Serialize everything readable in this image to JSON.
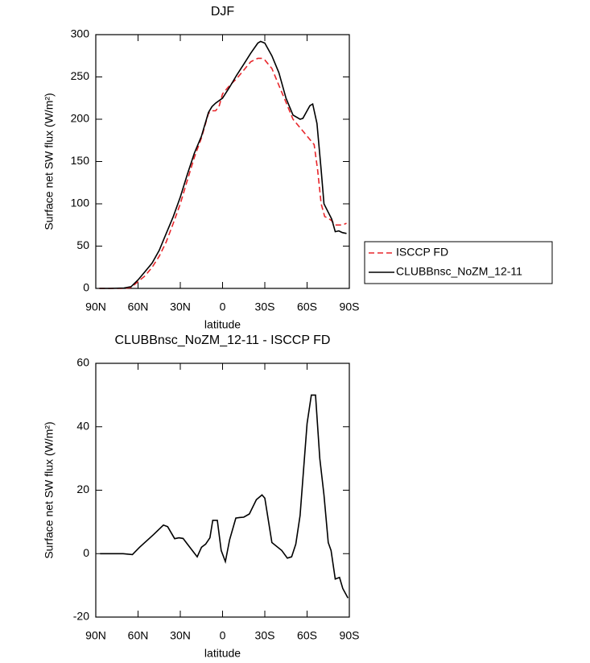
{
  "chart_data": [
    {
      "type": "line",
      "title": "DJF",
      "x_label": "latitude",
      "y_label": "Surface net SW flux (W/m²)",
      "xlim": [
        90,
        -90
      ],
      "xticks": [
        {
          "value": 90,
          "label": "90N"
        },
        {
          "value": 60,
          "label": "60N"
        },
        {
          "value": 30,
          "label": "30N"
        },
        0,
        {
          "value": -30,
          "label": "30S"
        },
        {
          "value": -60,
          "label": "60S"
        },
        {
          "value": -90,
          "label": "90S"
        }
      ],
      "ylim": [
        0,
        300
      ],
      "yticks": [
        0,
        50,
        100,
        150,
        200,
        250,
        300
      ],
      "legend_position": "right",
      "series": [
        {
          "name": "ISCCP FD",
          "color": "#e8262b",
          "linestyle": "dashed",
          "x": [
            87.5,
            80,
            70,
            65,
            60,
            55,
            50,
            45,
            40,
            35,
            30,
            25,
            20,
            15,
            10,
            7.5,
            5,
            2.5,
            0,
            -5,
            -10,
            -15,
            -20,
            -25,
            -28,
            -30,
            -35,
            -40,
            -45,
            -50,
            -55,
            -60,
            -65,
            -67.5,
            -70,
            -72.5,
            -75,
            -77.5,
            -80,
            -85,
            -88
          ],
          "values": [
            0,
            0,
            0,
            1,
            8,
            15,
            25,
            38,
            55,
            77,
            100,
            128,
            155,
            178,
            207,
            210,
            210,
            215,
            230,
            240,
            248,
            258,
            268,
            272,
            272,
            270,
            260,
            240,
            220,
            200,
            190,
            180,
            170,
            140,
            100,
            85,
            83,
            80,
            75,
            75,
            77
          ]
        },
        {
          "name": "CLUBBnsc_NoZM_12-11",
          "color": "#000000",
          "linestyle": "solid",
          "x": [
            87.5,
            80,
            70,
            65,
            60,
            55,
            50,
            45,
            40,
            35,
            30,
            25,
            20,
            15,
            10,
            7.5,
            5,
            0,
            -5,
            -10,
            -15,
            -20,
            -25,
            -27,
            -30,
            -35,
            -40,
            -45,
            -50,
            -55,
            -57,
            -60,
            -62,
            -64,
            -67,
            -70,
            -72,
            -75,
            -77.5,
            -80,
            -82.5,
            -85,
            -88
          ],
          "values": [
            0,
            0,
            0.5,
            2,
            10,
            20,
            30,
            45,
            65,
            85,
            108,
            135,
            160,
            180,
            208,
            215,
            219,
            225,
            238,
            252,
            265,
            278,
            290,
            292,
            290,
            275,
            255,
            225,
            205,
            200,
            201,
            210,
            216,
            218,
            195,
            140,
            100,
            90,
            82,
            67,
            68,
            66,
            65
          ]
        }
      ]
    },
    {
      "type": "line",
      "title": "CLUBBnsc_NoZM_12-11 - ISCCP FD",
      "x_label": "latitude",
      "y_label": "Surface net SW flux (W/m²)",
      "xlim": [
        90,
        -90
      ],
      "xticks": [
        {
          "value": 90,
          "label": "90N"
        },
        {
          "value": 60,
          "label": "60N"
        },
        {
          "value": 30,
          "label": "30N"
        },
        0,
        {
          "value": -30,
          "label": "30S"
        },
        {
          "value": -60,
          "label": "60S"
        },
        {
          "value": -90,
          "label": "90S"
        }
      ],
      "ylim": [
        -20,
        60
      ],
      "yticks": [
        -20,
        0,
        20,
        40,
        60
      ],
      "color": "#000000",
      "x": [
        87,
        70.6,
        64,
        59,
        49,
        42,
        39,
        34,
        31,
        28,
        25,
        18,
        15,
        12,
        9,
        7,
        3.7,
        1,
        -2,
        -5,
        -9.4,
        -12,
        -15,
        -19,
        -24,
        -28,
        -30,
        -35,
        -42,
        -46,
        -49,
        -52,
        -55,
        -60,
        -63,
        -66,
        -69,
        -72,
        -75,
        -77,
        -80,
        -83,
        -85.4,
        -89
      ],
      "values": [
        0,
        0,
        -0.3,
        2,
        6,
        9,
        8.5,
        4.7,
        5,
        4.8,
        3,
        -1,
        2,
        3,
        5,
        10.5,
        10.5,
        1,
        -2.5,
        4.4,
        11.2,
        11.4,
        11.5,
        12.5,
        17,
        18.5,
        17.5,
        3.5,
        1,
        -1.4,
        -1,
        3,
        12,
        41,
        50,
        50,
        30,
        18.5,
        3.5,
        1,
        -8,
        -7.5,
        -11,
        -14
      ]
    }
  ]
}
